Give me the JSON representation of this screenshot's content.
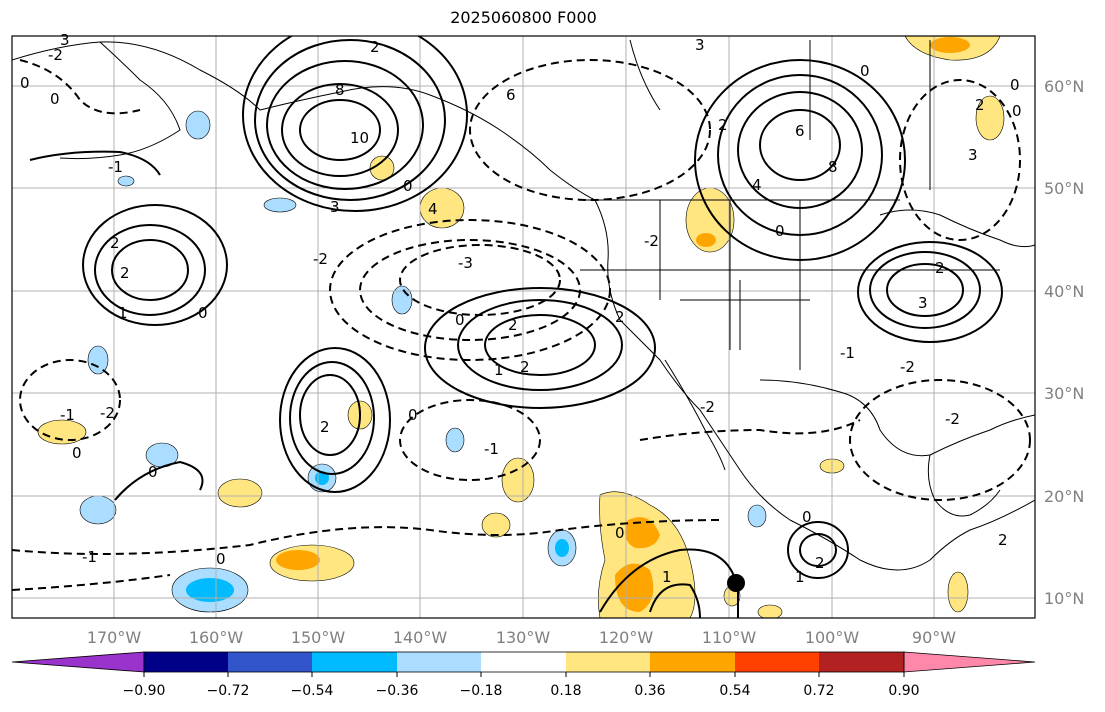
{
  "title": "2025060800 F000",
  "map": {
    "lon_labels": [
      "170°W",
      "160°W",
      "150°W",
      "140°W",
      "130°W",
      "120°W",
      "110°W",
      "100°W",
      "90°W"
    ],
    "lat_labels": [
      "60°N",
      "50°N",
      "40°N",
      "30°N",
      "20°N",
      "10°N"
    ],
    "contour_labels": [
      "3",
      "2",
      "0",
      "8",
      "10",
      "6",
      "4",
      "3",
      "2",
      "1",
      "2",
      "0",
      "-2",
      "-3",
      "-2",
      "2",
      "-1",
      "0",
      "2",
      "1",
      "2",
      "0",
      "-1",
      "-2",
      "0",
      "0",
      "-1",
      "0",
      "0",
      "0",
      "1",
      "2",
      "1",
      "-2",
      "2",
      "-2",
      "2",
      "6",
      "8",
      "4",
      "0",
      "3",
      "0",
      "2",
      "3",
      "-1",
      "-2",
      "0",
      "2",
      "0",
      "-2",
      "0",
      "-1",
      "0",
      "2",
      "3"
    ],
    "colors": {
      "land_line": "#000000",
      "grid": "#b0b0b0",
      "marker": "#000000"
    }
  },
  "colorbar": {
    "labels": [
      "−0.90",
      "−0.72",
      "−0.54",
      "−0.36",
      "−0.18",
      "0.18",
      "0.36",
      "0.54",
      "0.72",
      "0.90"
    ],
    "colors": [
      "#9933cc",
      "#000088",
      "#3355cc",
      "#00bbff",
      "#aaddff",
      "#ffffff",
      "#ffe680",
      "#ffa500",
      "#ff4000",
      "#b22222",
      "#ff88aa"
    ]
  }
}
